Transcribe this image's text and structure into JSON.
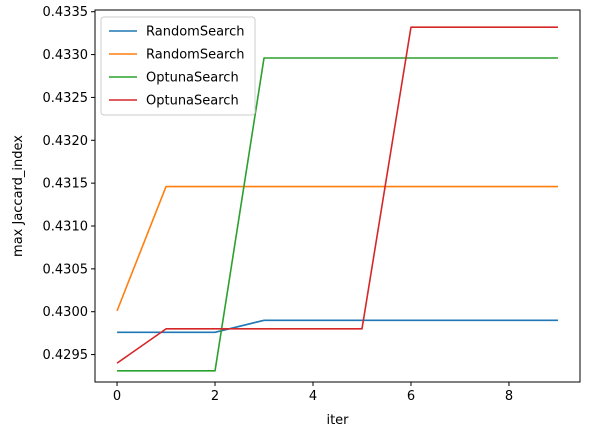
{
  "chart_data": {
    "type": "line",
    "title": "",
    "xlabel": "iter",
    "ylabel": "max Jaccard_index",
    "xlim": [
      -0.45,
      9.45
    ],
    "ylim": [
      0.42918,
      0.43352
    ],
    "xticks": [
      0,
      2,
      4,
      6,
      8
    ],
    "yticks": [
      0.4295,
      0.43,
      0.4305,
      0.431,
      0.4315,
      0.432,
      0.4325,
      0.433,
      0.4335
    ],
    "ytick_labels": [
      "0.4295",
      "0.4300",
      "0.4305",
      "0.4310",
      "0.4315",
      "0.4320",
      "0.4325",
      "0.4330",
      "0.4335"
    ],
    "grid": false,
    "legend_position": "top-left",
    "x": [
      0,
      1,
      2,
      3,
      4,
      5,
      6,
      7,
      8,
      9
    ],
    "series": [
      {
        "name": "RandomSearch",
        "color": "#1f77b4",
        "values": [
          0.42976,
          0.42976,
          0.42976,
          0.4299,
          0.4299,
          0.4299,
          0.4299,
          0.4299,
          0.4299,
          0.4299
        ]
      },
      {
        "name": "RandomSearch",
        "color": "#ff7f0e",
        "values": [
          0.43001,
          0.43146,
          0.43146,
          0.43146,
          0.43146,
          0.43146,
          0.43146,
          0.43146,
          0.43146,
          0.43146
        ]
      },
      {
        "name": "OptunaSearch",
        "color": "#2ca02c",
        "values": [
          0.42931,
          0.42931,
          0.42931,
          0.43296,
          0.43296,
          0.43296,
          0.43296,
          0.43296,
          0.43296,
          0.43296
        ]
      },
      {
        "name": "OptunaSearch",
        "color": "#d62728",
        "values": [
          0.4294,
          0.4298,
          0.4298,
          0.4298,
          0.4298,
          0.4298,
          0.43332,
          0.43332,
          0.43332,
          0.43332
        ]
      }
    ]
  }
}
